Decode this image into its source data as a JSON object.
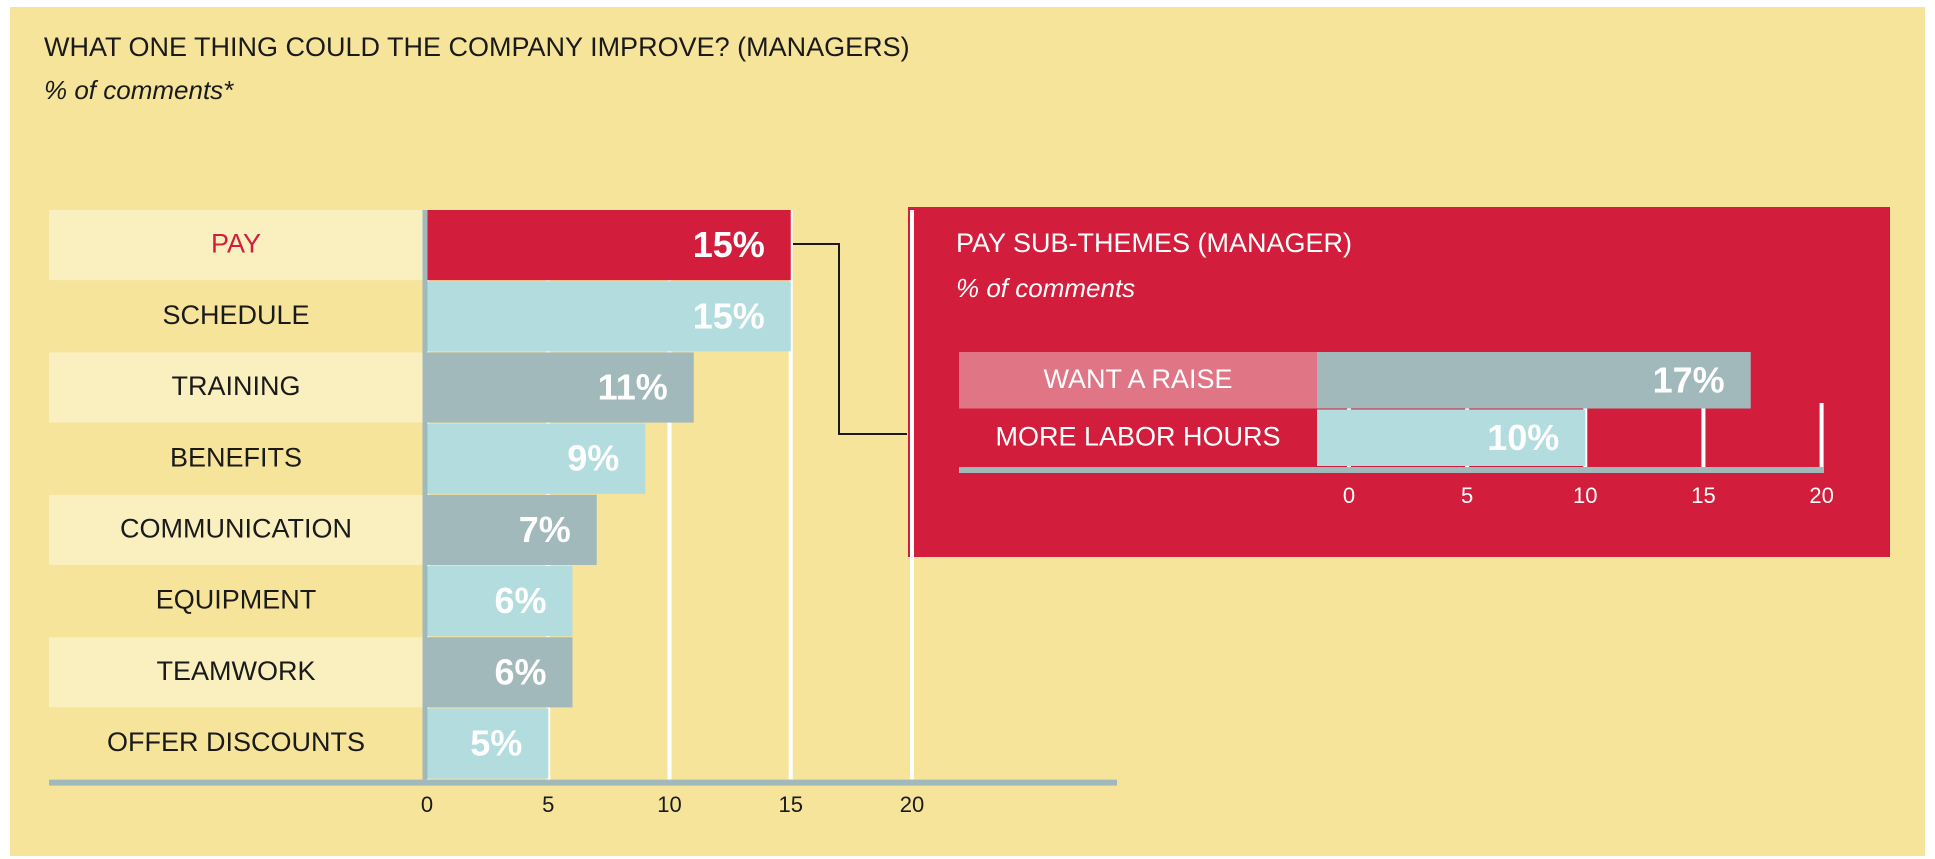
{
  "chart_data": [
    {
      "type": "bar",
      "orientation": "horizontal",
      "title": "WHAT ONE THING COULD THE COMPANY IMPROVE? (MANAGERS)",
      "subtitle": "% of comments*",
      "categories": [
        "PAY",
        "SCHEDULE",
        "TRAINING",
        "BENEFITS",
        "COMMUNICATION",
        "EQUIPMENT",
        "TEAMWORK",
        "OFFER DISCOUNTS"
      ],
      "values": [
        15,
        15,
        11,
        9,
        7,
        6,
        6,
        5
      ],
      "value_labels": [
        "15%",
        "15%",
        "11%",
        "9%",
        "7%",
        "6%",
        "6%",
        "5%"
      ],
      "colors": [
        "#d21e3c",
        "#b2dcdd",
        "#a2b9bc",
        "#b2dcdd",
        "#a2b9bc",
        "#b2dcdd",
        "#a2b9bc",
        "#b2dcdd"
      ],
      "label_colors": [
        "#d21e3c",
        "#1a1a1a",
        "#1a1a1a",
        "#1a1a1a",
        "#1a1a1a",
        "#1a1a1a",
        "#1a1a1a",
        "#1a1a1a"
      ],
      "xlim": [
        0,
        20
      ],
      "xticks": [
        0,
        5,
        10,
        15,
        20
      ],
      "grid": true
    },
    {
      "type": "bar",
      "orientation": "horizontal",
      "title": "PAY SUB-THEMES (MANAGER)",
      "subtitle": "% of comments",
      "categories": [
        "WANT A RAISE",
        "MORE LABOR HOURS"
      ],
      "values": [
        17,
        10
      ],
      "value_labels": [
        "17%",
        "10%"
      ],
      "colors": [
        "#a2b9bc",
        "#b2dcdd"
      ],
      "label_backgrounds": [
        "#e07585",
        "#d21e3c"
      ],
      "xlim": [
        0,
        20
      ],
      "xticks": [
        0,
        5,
        10,
        15,
        20
      ],
      "grid": true
    }
  ]
}
